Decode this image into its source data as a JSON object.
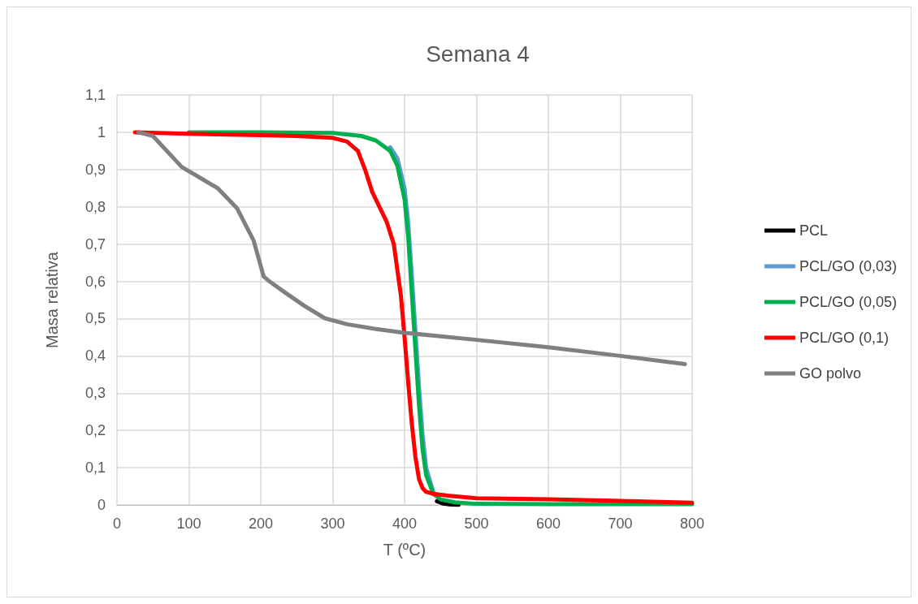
{
  "chart_data": {
    "type": "line",
    "title": "Semana 4",
    "xlabel": "T (ºC)",
    "ylabel": "Masa relativa",
    "xlim": [
      0,
      800
    ],
    "xticks": [
      0,
      100,
      200,
      300,
      400,
      500,
      600,
      700,
      800
    ],
    "ylim": [
      0,
      1.1
    ],
    "yticks": [
      0,
      {
        "value": 0.1,
        "label": "0,1"
      },
      {
        "value": 0.2,
        "label": "0,2"
      },
      {
        "value": 0.3,
        "label": "0,3"
      },
      {
        "value": 0.4,
        "label": "0,4"
      },
      {
        "value": 0.5,
        "label": "0,5"
      },
      {
        "value": 0.6,
        "label": "0,6"
      },
      {
        "value": 0.7,
        "label": "0,7"
      },
      {
        "value": 0.8,
        "label": "0,8"
      },
      {
        "value": 0.9,
        "label": "0,9"
      },
      1,
      {
        "value": 1.1,
        "label": "1,1"
      }
    ],
    "grid": true,
    "legend": "right",
    "marker": "none",
    "line_style": "solid",
    "series": [
      {
        "name": "PCL",
        "color": "#000000",
        "x": [
          445,
          455,
          465,
          475
        ],
        "values": [
          0.01,
          0.003,
          0.001,
          0
        ]
      },
      {
        "name": "PCL/GO (0,03)",
        "color": "#5b9bd5",
        "x": [
          380,
          390,
          400,
          405,
          410,
          415,
          420,
          425,
          430,
          440
        ],
        "values": [
          0.96,
          0.93,
          0.85,
          0.76,
          0.62,
          0.47,
          0.32,
          0.19,
          0.1,
          0.035
        ]
      },
      {
        "name": "PCL/GO (0,05)",
        "color": "#00b050",
        "x": [
          100,
          200,
          300,
          340,
          360,
          380,
          390,
          400,
          405,
          410,
          415,
          420,
          425,
          430,
          440,
          450,
          470,
          500,
          600,
          700,
          800
        ],
        "values": [
          1,
          1,
          0.998,
          0.99,
          0.978,
          0.95,
          0.91,
          0.82,
          0.72,
          0.57,
          0.42,
          0.27,
          0.15,
          0.08,
          0.03,
          0.015,
          0.007,
          0.003,
          0.002,
          0.002,
          0.002
        ]
      },
      {
        "name": "PCL/GO (0,1)",
        "color": "#ff0000",
        "x": [
          25,
          100,
          200,
          250,
          300,
          320,
          335,
          345,
          355,
          365,
          375,
          385,
          395,
          400,
          405,
          410,
          415,
          420,
          425,
          430,
          440,
          460,
          500,
          600,
          700,
          800
        ],
        "values": [
          1,
          0.996,
          0.992,
          0.99,
          0.985,
          0.975,
          0.95,
          0.9,
          0.84,
          0.8,
          0.76,
          0.7,
          0.56,
          0.45,
          0.33,
          0.22,
          0.13,
          0.07,
          0.045,
          0.035,
          0.03,
          0.025,
          0.018,
          0.015,
          0.011,
          0.006
        ]
      },
      {
        "name": "GO polvo",
        "color": "#808080",
        "x": [
          30,
          50,
          90,
          140,
          167,
          190,
          204,
          212,
          233,
          260,
          289,
          320,
          360,
          400,
          500,
          600,
          700,
          790
        ],
        "values": [
          1,
          0.99,
          0.907,
          0.85,
          0.796,
          0.71,
          0.613,
          0.6,
          0.571,
          0.535,
          0.501,
          0.485,
          0.472,
          0.462,
          0.443,
          0.423,
          0.4,
          0.378
        ]
      }
    ]
  }
}
